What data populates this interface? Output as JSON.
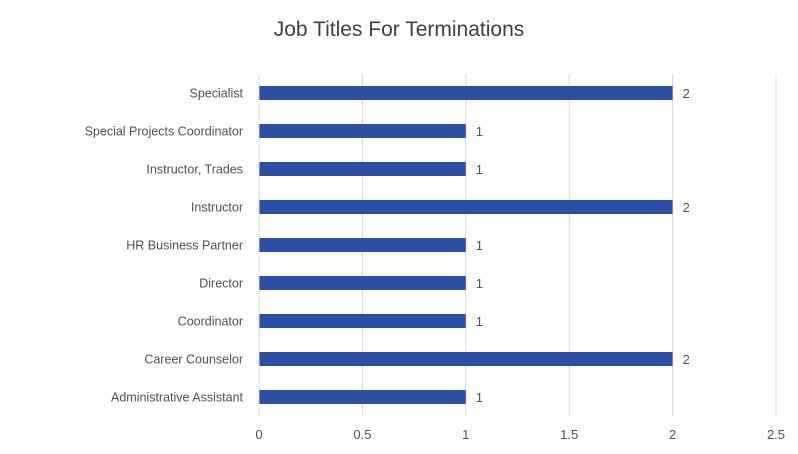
{
  "chart_data": {
    "type": "bar",
    "orientation": "horizontal",
    "title": "Job Titles For Terminations",
    "categories": [
      "Specialist",
      "Special Projects Coordinator",
      "Instructor, Trades",
      "Instructor",
      "HR Business Partner",
      "Director",
      "Coordinator",
      "Career Counselor",
      "Administrative Assistant"
    ],
    "values": [
      2,
      1,
      1,
      2,
      1,
      1,
      1,
      2,
      1
    ],
    "xlim": [
      0,
      2.5
    ],
    "xticks": [
      "0",
      "0.5",
      "1",
      "1.5",
      "2",
      "2.5"
    ],
    "grid": true,
    "data_labels": true,
    "bar_color": "#2e4fa6",
    "grid_color": "#d9d9d9"
  }
}
